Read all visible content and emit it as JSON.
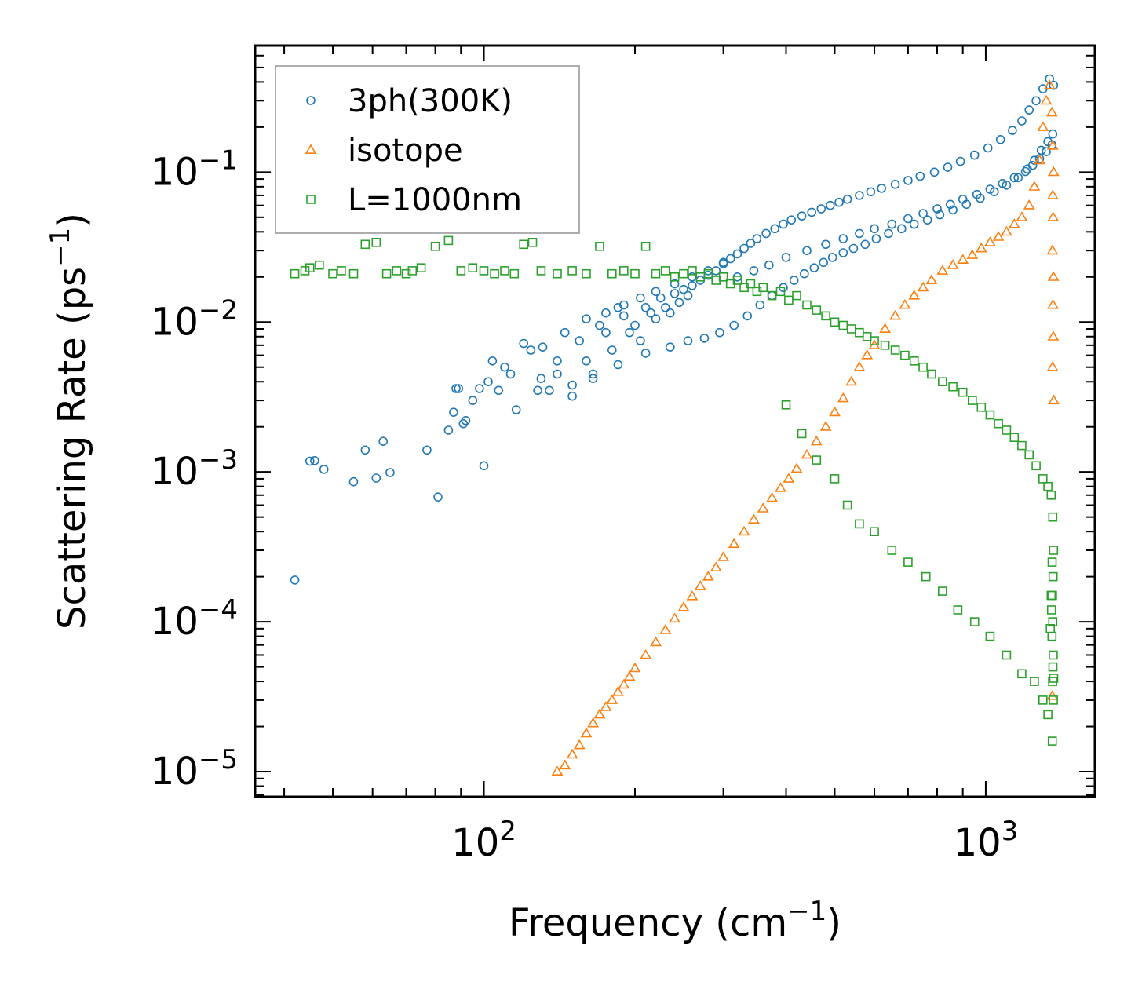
{
  "chart_data": {
    "type": "scatter",
    "title": "",
    "xlabel": "Frequency (cm",
    "xlabel_sup": "−1",
    "xlabel_end": ")",
    "ylabel": "Scattering Rate (ps",
    "ylabel_sup": "−1",
    "ylabel_end": ")",
    "xscale": "log",
    "yscale": "log",
    "xlim": [
      35,
      1650
    ],
    "ylim": [
      6.8e-06,
      0.7
    ],
    "x_ticks": [
      {
        "value": 100,
        "base": "10",
        "exp": "2"
      },
      {
        "value": 1000,
        "base": "10",
        "exp": "3"
      }
    ],
    "y_ticks": [
      {
        "value": 1e-05,
        "base": "10",
        "exp": "−5"
      },
      {
        "value": 0.0001,
        "base": "10",
        "exp": "−4"
      },
      {
        "value": 0.001,
        "base": "10",
        "exp": "−3"
      },
      {
        "value": 0.01,
        "base": "10",
        "exp": "−2"
      },
      {
        "value": 0.1,
        "base": "10",
        "exp": "−1"
      }
    ],
    "legend_position": "top-left",
    "series": [
      {
        "name": "3ph(300K)",
        "marker": "circle",
        "color": "#1f77b4",
        "x": [
          42,
          45,
          46,
          48,
          55,
          58,
          61,
          63,
          65,
          77,
          81,
          85,
          87,
          88,
          89,
          91,
          92,
          95,
          98,
          100,
          102,
          104,
          107,
          110,
          113,
          116,
          120,
          124,
          128,
          131,
          135,
          140,
          145,
          150,
          155,
          160,
          165,
          170,
          175,
          180,
          185,
          190,
          195,
          200,
          205,
          210,
          215,
          220,
          225,
          230,
          235,
          240,
          245,
          250,
          255,
          260,
          270,
          280,
          290,
          300,
          310,
          320,
          330,
          340,
          350,
          365,
          380,
          395,
          410,
          430,
          450,
          470,
          490,
          510,
          530,
          560,
          590,
          620,
          660,
          700,
          740,
          790,
          840,
          890,
          950,
          1010,
          1070,
          1130,
          1180,
          1220,
          1260,
          1300,
          1340,
          1365,
          160,
          175,
          190,
          205,
          220,
          240,
          260,
          280,
          300,
          140,
          130,
          150,
          165,
          185,
          210,
          235,
          255,
          275,
          295,
          315,
          335,
          355,
          375,
          395,
          415,
          435,
          455,
          475,
          495,
          520,
          545,
          575,
          605,
          640,
          680,
          720,
          765,
          810,
          860,
          915,
          975,
          1040,
          1100,
          1160,
          1210,
          1250,
          1290,
          1330,
          1360,
          320,
          345,
          370,
          400,
          440,
          480,
          520,
          560,
          600,
          650,
          700,
          750,
          800,
          850,
          900,
          960,
          1020,
          1080,
          1140,
          1200,
          1240,
          1280,
          1320,
          1355
        ],
        "y": [
          0.00019,
          0.00118,
          0.00119,
          0.00104,
          0.00086,
          0.0014,
          0.00091,
          0.0016,
          0.00099,
          0.0014,
          0.00068,
          0.0019,
          0.0025,
          0.0036,
          0.0036,
          0.0021,
          0.0022,
          0.003,
          0.0036,
          0.0011,
          0.004,
          0.0055,
          0.0035,
          0.005,
          0.0045,
          0.0026,
          0.0072,
          0.0065,
          0.0035,
          0.0068,
          0.0035,
          0.0045,
          0.0085,
          0.0032,
          0.0075,
          0.0055,
          0.0045,
          0.0095,
          0.0085,
          0.0065,
          0.0125,
          0.011,
          0.0085,
          0.0095,
          0.0075,
          0.0125,
          0.0115,
          0.0105,
          0.0145,
          0.0125,
          0.0115,
          0.0155,
          0.0135,
          0.0165,
          0.015,
          0.0175,
          0.019,
          0.0205,
          0.022,
          0.0245,
          0.0265,
          0.0285,
          0.031,
          0.0335,
          0.036,
          0.039,
          0.042,
          0.045,
          0.048,
          0.051,
          0.054,
          0.057,
          0.06,
          0.063,
          0.066,
          0.07,
          0.074,
          0.078,
          0.083,
          0.088,
          0.094,
          0.1,
          0.108,
          0.118,
          0.13,
          0.145,
          0.165,
          0.19,
          0.22,
          0.26,
          0.3,
          0.36,
          0.42,
          0.38,
          0.0105,
          0.0115,
          0.013,
          0.0145,
          0.016,
          0.018,
          0.02,
          0.022,
          0.025,
          0.0055,
          0.0042,
          0.0038,
          0.0042,
          0.0052,
          0.0062,
          0.0068,
          0.0075,
          0.0078,
          0.0085,
          0.0095,
          0.011,
          0.013,
          0.015,
          0.017,
          0.019,
          0.021,
          0.023,
          0.025,
          0.027,
          0.029,
          0.031,
          0.033,
          0.036,
          0.039,
          0.042,
          0.045,
          0.048,
          0.052,
          0.056,
          0.061,
          0.067,
          0.074,
          0.082,
          0.092,
          0.105,
          0.12,
          0.14,
          0.16,
          0.18,
          0.02,
          0.022,
          0.024,
          0.027,
          0.03,
          0.033,
          0.036,
          0.039,
          0.042,
          0.045,
          0.049,
          0.053,
          0.057,
          0.061,
          0.066,
          0.071,
          0.077,
          0.084,
          0.092,
          0.101,
          0.111,
          0.123,
          0.137,
          0.152
        ]
      },
      {
        "name": "isotope",
        "marker": "triangle",
        "color": "#ff7f0e",
        "x": [
          140,
          145,
          150,
          155,
          160,
          165,
          170,
          175,
          180,
          185,
          190,
          195,
          200,
          210,
          220,
          230,
          240,
          250,
          260,
          270,
          280,
          290,
          300,
          315,
          330,
          345,
          360,
          375,
          390,
          405,
          420,
          440,
          460,
          480,
          500,
          520,
          540,
          560,
          580,
          600,
          630,
          660,
          690,
          720,
          750,
          780,
          820,
          860,
          900,
          940,
          980,
          1020,
          1060,
          1100,
          1140,
          1180,
          1220,
          1250,
          1280,
          1300,
          1320,
          1340,
          1355,
          1360,
          1365,
          1360,
          1362,
          1358,
          1364,
          1361,
          1363,
          1359,
          1366,
          1357
        ],
        "y": [
          1e-05,
          1.1e-05,
          1.3e-05,
          1.5e-05,
          1.8e-05,
          2.1e-05,
          2.4e-05,
          2.7e-05,
          3e-05,
          3.4e-05,
          3.8e-05,
          4.3e-05,
          4.9e-05,
          6e-05,
          7.3e-05,
          8.8e-05,
          0.000105,
          0.000125,
          0.000148,
          0.000173,
          0.0002,
          0.00023,
          0.00027,
          0.00033,
          0.0004,
          0.00048,
          0.00057,
          0.00067,
          0.00078,
          0.0009,
          0.00105,
          0.0013,
          0.0016,
          0.002,
          0.0025,
          0.0031,
          0.004,
          0.005,
          0.006,
          0.007,
          0.009,
          0.011,
          0.013,
          0.015,
          0.017,
          0.019,
          0.022,
          0.024,
          0.026,
          0.028,
          0.031,
          0.034,
          0.037,
          0.04,
          0.045,
          0.05,
          0.06,
          0.08,
          0.12,
          0.2,
          0.3,
          0.38,
          0.25,
          0.15,
          0.1,
          0.07,
          0.05,
          0.03,
          0.02,
          0.013,
          0.008,
          0.005,
          0.003,
          3.2e-05
        ]
      },
      {
        "name": "L=1000nm",
        "marker": "square",
        "color": "#2ca02c",
        "x": [
          42,
          44,
          45,
          47,
          50,
          52,
          55,
          58,
          61,
          64,
          67,
          70,
          72,
          75,
          80,
          85,
          90,
          95,
          100,
          105,
          110,
          115,
          120,
          125,
          130,
          140,
          150,
          160,
          170,
          180,
          190,
          200,
          210,
          220,
          230,
          240,
          250,
          260,
          270,
          280,
          290,
          300,
          310,
          320,
          330,
          340,
          350,
          360,
          375,
          390,
          405,
          420,
          440,
          460,
          480,
          500,
          520,
          540,
          560,
          580,
          600,
          630,
          660,
          690,
          720,
          750,
          780,
          820,
          860,
          900,
          940,
          980,
          1020,
          1060,
          1100,
          1140,
          1180,
          1220,
          1260,
          1300,
          1330,
          1350,
          1360,
          1365,
          1362,
          1358,
          1360,
          1355,
          1363,
          1361,
          1359,
          1364,
          1357,
          1366,
          400,
          430,
          460,
          500,
          530,
          560,
          600,
          650,
          700,
          760,
          820,
          880,
          950,
          1020,
          1100,
          1180,
          1250,
          1300,
          1330,
          1345,
          1352,
          1350,
          1356
        ],
        "y": [
          0.021,
          0.022,
          0.023,
          0.024,
          0.021,
          0.022,
          0.021,
          0.033,
          0.034,
          0.021,
          0.022,
          0.021,
          0.022,
          0.023,
          0.032,
          0.035,
          0.022,
          0.023,
          0.022,
          0.021,
          0.022,
          0.021,
          0.033,
          0.034,
          0.022,
          0.021,
          0.022,
          0.021,
          0.032,
          0.021,
          0.022,
          0.021,
          0.032,
          0.021,
          0.022,
          0.02,
          0.021,
          0.022,
          0.02,
          0.021,
          0.019,
          0.02,
          0.018,
          0.019,
          0.017,
          0.018,
          0.016,
          0.017,
          0.015,
          0.016,
          0.014,
          0.015,
          0.013,
          0.012,
          0.011,
          0.01,
          0.0095,
          0.009,
          0.0085,
          0.008,
          0.0075,
          0.007,
          0.0065,
          0.006,
          0.0055,
          0.005,
          0.0045,
          0.004,
          0.0037,
          0.0034,
          0.003,
          0.0027,
          0.0024,
          0.0021,
          0.0019,
          0.0017,
          0.0015,
          0.0013,
          0.0011,
          0.0009,
          0.0008,
          0.0007,
          0.0005,
          0.0003,
          0.0002,
          0.00015,
          0.0001,
          8e-05,
          6e-05,
          5e-05,
          4e-05,
          3e-05,
          1.6e-05,
          4.2e-05,
          0.0028,
          0.0018,
          0.0012,
          0.0009,
          0.0006,
          0.00045,
          0.0004,
          0.0003,
          0.00025,
          0.0002,
          0.00016,
          0.00012,
          0.0001,
          8e-05,
          6e-05,
          4.5e-05,
          4e-05,
          3e-05,
          2.4e-05,
          9e-05,
          0.00012,
          0.00015,
          0.00025
        ]
      }
    ]
  }
}
